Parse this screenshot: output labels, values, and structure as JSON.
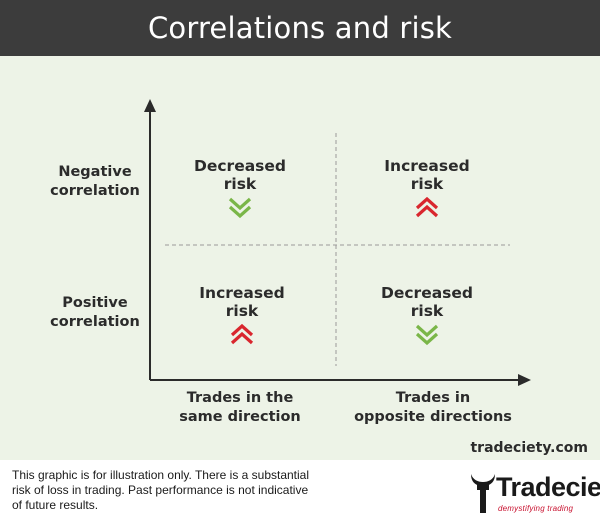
{
  "title": "Correlations and risk",
  "rows": {
    "negative": "Negative\ncorrelation",
    "positive": "Positive\ncorrelation"
  },
  "columns": {
    "same": "Trades in the\nsame direction",
    "opposite": "Trades in\nopposite directions"
  },
  "cells": {
    "neg_same": {
      "text": "Decreased\nrisk",
      "icon": "double-chevron-down-icon"
    },
    "neg_opposite": {
      "text": "Increased\nrisk",
      "icon": "double-chevron-up-icon"
    },
    "pos_same": {
      "text": "Increased\nrisk",
      "icon": "double-chevron-up-icon"
    },
    "pos_opposite": {
      "text": "Decreased\nrisk",
      "icon": "double-chevron-down-icon"
    }
  },
  "colors": {
    "decrease": "#7ab648",
    "increase": "#d9262e",
    "header_bg": "#3c3c3c",
    "page_bg": "#edf3e7"
  },
  "website": "tradeciety.com",
  "disclaimer": "This graphic is for illustration only. There is a substantial  risk of loss in trading. Past performance is not indicative of future results.",
  "logo": {
    "name": "Tradeciety",
    "tagline": "demystifying trading"
  }
}
